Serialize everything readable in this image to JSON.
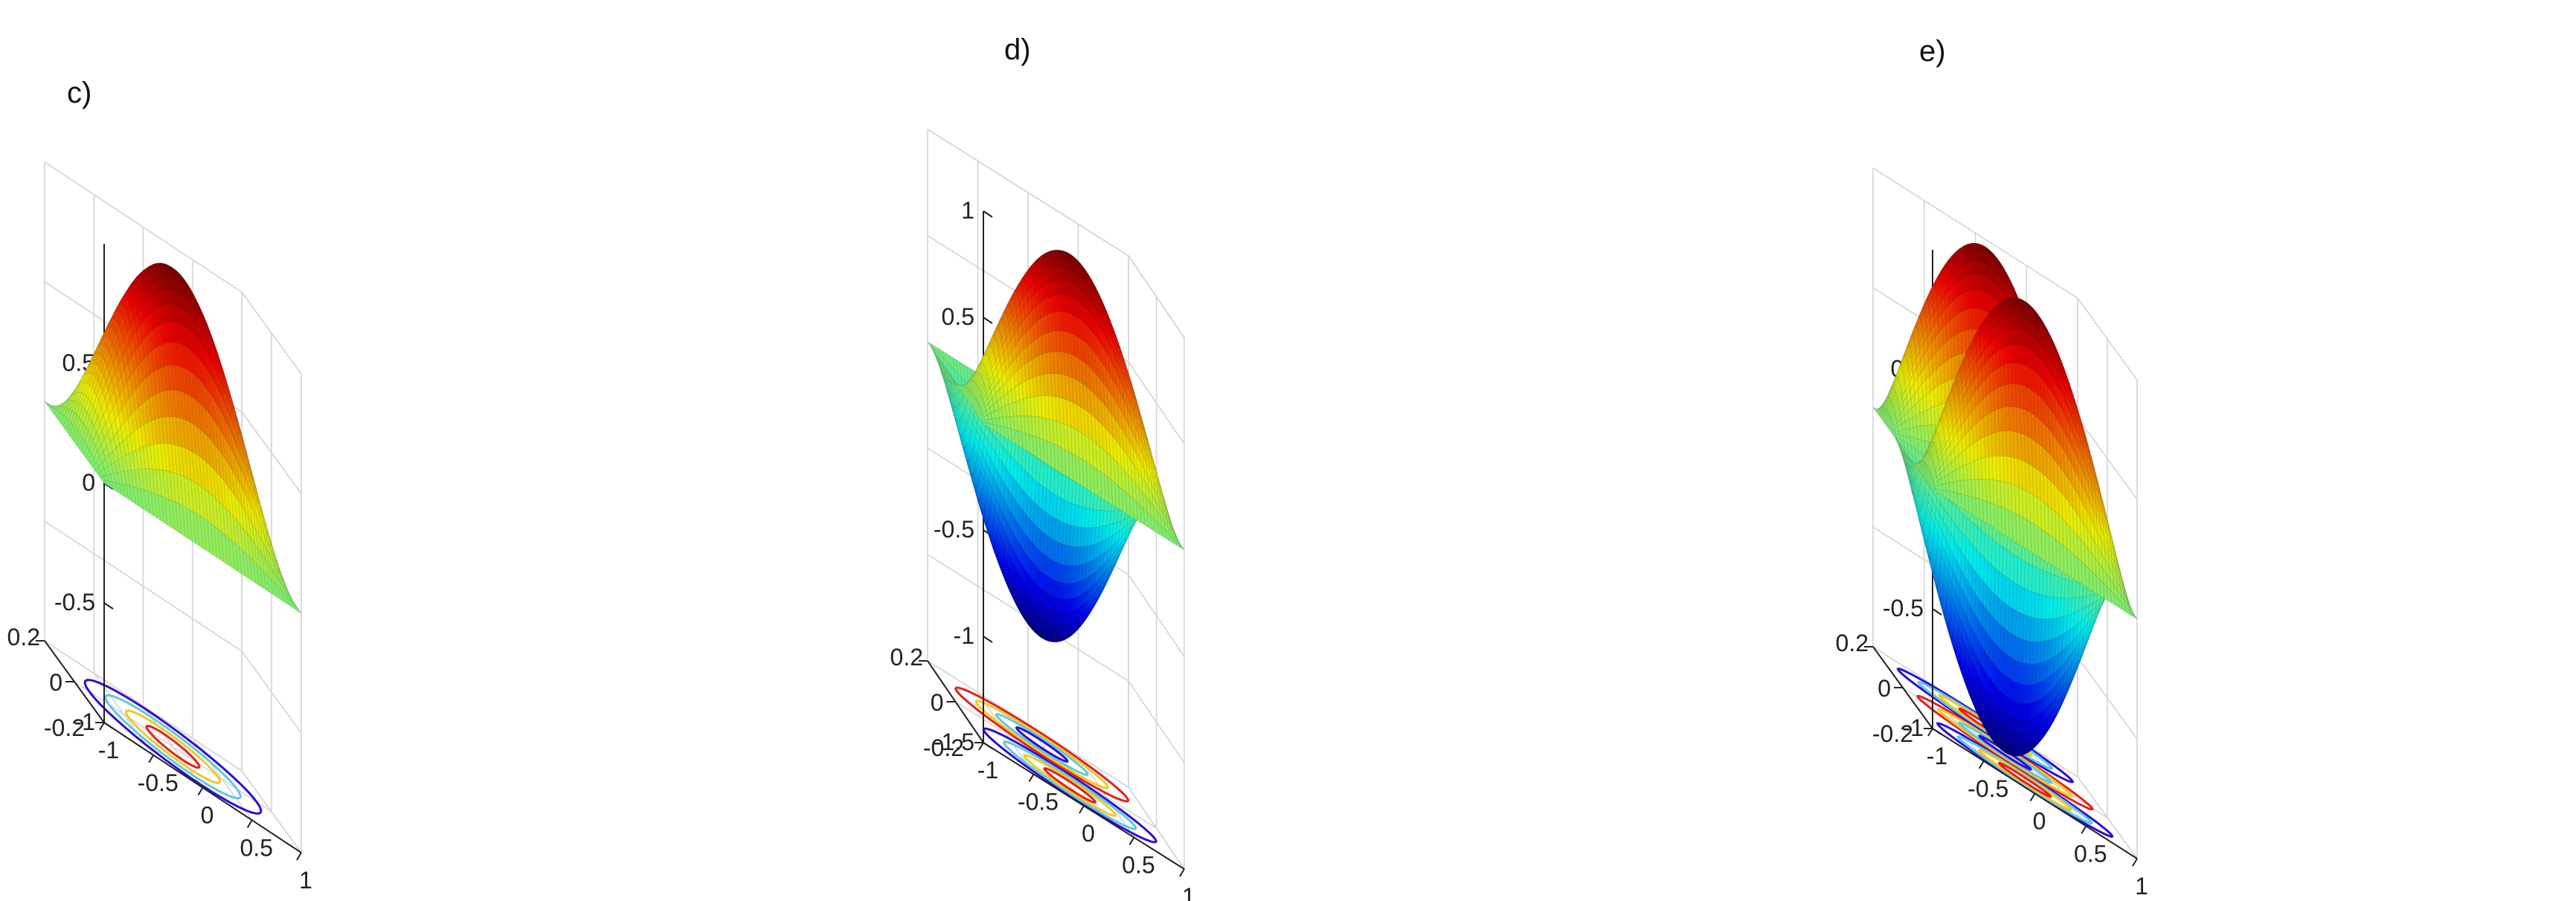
{
  "chart_data": [
    {
      "panel": "c)",
      "type": "surface3d",
      "colormap": "jet",
      "x_range": [
        -1,
        1
      ],
      "y_range": [
        -0.2,
        0.2
      ],
      "z_range": [
        -1,
        1
      ],
      "surface": {
        "mode": 1,
        "amplitude": 1.0
      },
      "contour": {
        "offset": -1,
        "count": 1,
        "rings": 3,
        "colors": [
          "#2e0fd4",
          "#e2211c",
          "#f0c82a",
          "#61c8df"
        ]
      },
      "z_ticks": [
        -1,
        -0.5,
        0,
        0.5
      ],
      "z_tick_labels": [
        "-1",
        "-0.5",
        "0",
        "0.5"
      ],
      "x_ticks": [
        -1,
        -0.5,
        0,
        0.5,
        1
      ],
      "x_tick_labels": [
        "-1",
        "-0.5",
        "0",
        "0.5",
        "1"
      ],
      "y_ticks": [
        -0.2,
        0,
        0.2
      ],
      "y_tick_labels": [
        "-0.2",
        "0",
        "0.2"
      ]
    },
    {
      "panel": "d)",
      "type": "surface3d",
      "colormap": "jet",
      "x_range": [
        -1,
        1
      ],
      "y_range": [
        -0.2,
        0.2
      ],
      "z_range": [
        -1.5,
        1
      ],
      "surface": {
        "mode": 2,
        "amplitude": 1.0
      },
      "contour": {
        "offset": -1.5,
        "count": 2,
        "rings": 3,
        "colors": [
          "#2e0fd4",
          "#e2211c",
          "#f0c82a",
          "#61c8df"
        ]
      },
      "z_ticks": [
        -1.5,
        -1,
        -0.5,
        0,
        0.5,
        1
      ],
      "z_tick_labels": [
        "-1.5",
        "-1",
        "-0.5",
        "0",
        "0.5",
        "1"
      ],
      "x_ticks": [
        -1,
        -0.5,
        0,
        0.5,
        1
      ],
      "x_tick_labels": [
        "-1",
        "-0.5",
        "0",
        "0.5",
        "1"
      ],
      "y_ticks": [
        -0.2,
        0,
        0.2
      ],
      "y_tick_labels": [
        "-0.2",
        "0",
        "0.2"
      ]
    },
    {
      "panel": "e)",
      "type": "surface3d",
      "colormap": "jet",
      "x_range": [
        -1,
        1
      ],
      "y_range": [
        -0.2,
        0.2
      ],
      "z_range": [
        -1,
        1
      ],
      "surface": {
        "mode": 3,
        "amplitude": 1.0
      },
      "contour": {
        "offset": -1,
        "count": 3,
        "rings": 3,
        "colors": [
          "#2e0fd4",
          "#e2211c",
          "#f0c82a",
          "#61c8df"
        ]
      },
      "z_ticks": [
        -1,
        -0.5,
        0,
        0.5
      ],
      "z_tick_labels": [
        "-1",
        "-0.5",
        "0",
        "0.5"
      ],
      "x_ticks": [
        -1,
        -0.5,
        0,
        0.5,
        1
      ],
      "x_tick_labels": [
        "-1",
        "-0.5",
        "0",
        "0.5",
        "1"
      ],
      "y_ticks": [
        -0.2,
        0,
        0.2
      ],
      "y_tick_labels": [
        "-0.2",
        "0",
        "0.2"
      ]
    }
  ]
}
